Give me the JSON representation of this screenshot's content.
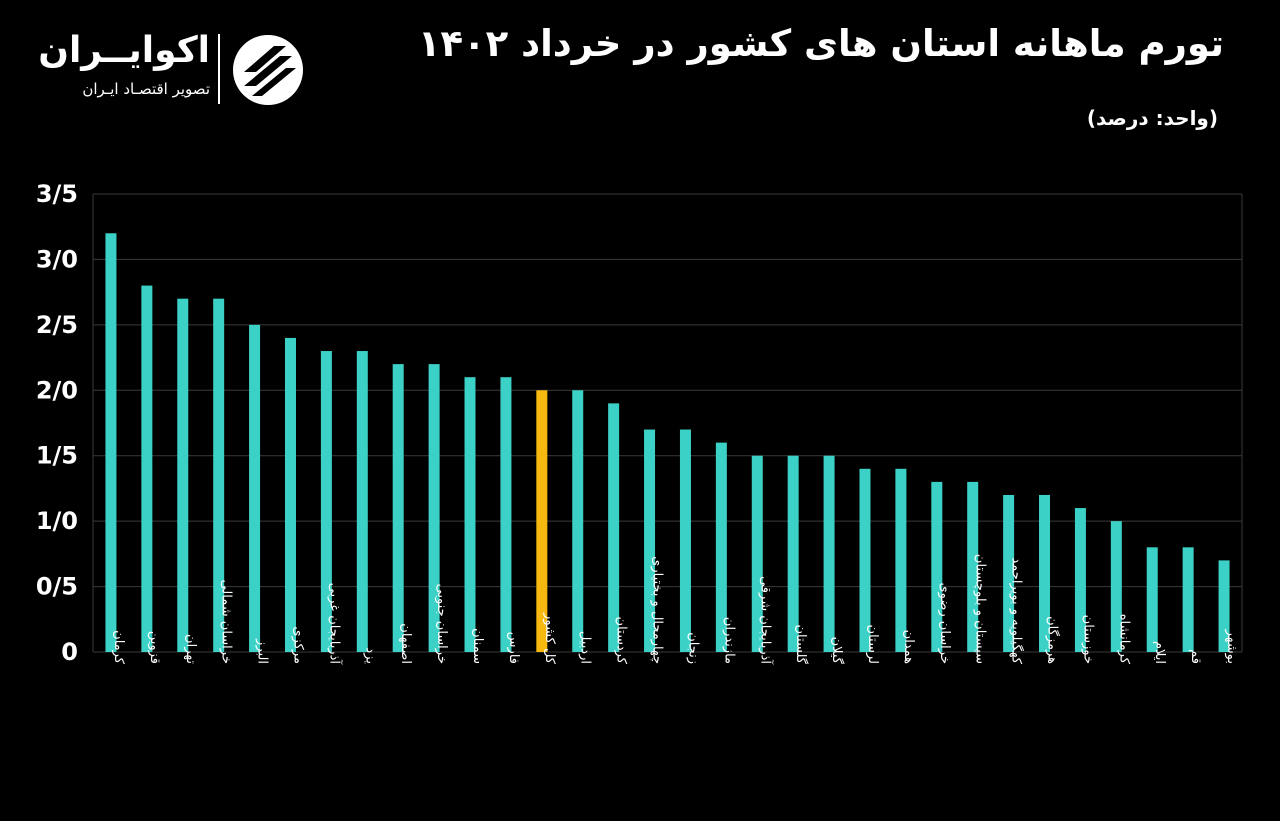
{
  "header": {
    "title": "تورم ماهانه استان های کشور در خرداد ۱۴۰۲",
    "unit": "(واحد: درصد)"
  },
  "brand": {
    "name": "اکوایــران",
    "tagline": "تصویر اقتصـاد ایـران",
    "icon": "ecoiran-logo-icon"
  },
  "colors": {
    "bar": "#3cd1c6",
    "highlight": "#f7b90f",
    "grid": "#3a3a3a",
    "background": "#000000",
    "text": "#ffffff"
  },
  "chart_data": {
    "type": "bar",
    "title": "تورم ماهانه استان های کشور در خرداد ۱۴۰۲",
    "xlabel": "",
    "ylabel": "",
    "ylim": [
      0,
      3.5
    ],
    "grid": true,
    "y_ticks": [
      0,
      0.5,
      1.0,
      1.5,
      2.0,
      2.5,
      3.0,
      3.5
    ],
    "y_tick_labels": [
      "0",
      "0/5",
      "1/0",
      "1/5",
      "2/0",
      "2/5",
      "3/0",
      "3/5"
    ],
    "categories": [
      "کرمان",
      "قزوین",
      "تهران",
      "خراسان شمالی",
      "البرز",
      "مرکزی",
      "آذربایجان غربی",
      "یزد",
      "اصفهان",
      "خراسان جنوبی",
      "سمنان",
      "فارس",
      "کل کشور",
      "اردبیل",
      "کردستان",
      "چهارمحال و بختیاری",
      "زنجان",
      "مازندران",
      "آذربایجان شرقی",
      "گلستان",
      "گیلان",
      "لرستان",
      "همدان",
      "خراسان رضوی",
      "سیستان و بلوچستان",
      "کهگیلویه و بویراحمد",
      "هرمزگان",
      "خوزستان",
      "کرمانشاه",
      "ایلام",
      "قم",
      "بوشهر"
    ],
    "values": [
      3.2,
      2.8,
      2.7,
      2.7,
      2.5,
      2.4,
      2.3,
      2.3,
      2.2,
      2.2,
      2.1,
      2.1,
      2.0,
      2.0,
      1.9,
      1.7,
      1.7,
      1.6,
      1.5,
      1.5,
      1.5,
      1.4,
      1.4,
      1.3,
      1.3,
      1.2,
      1.2,
      1.1,
      1.0,
      0.8,
      0.8,
      0.7
    ],
    "highlight_category": "کل کشور"
  }
}
